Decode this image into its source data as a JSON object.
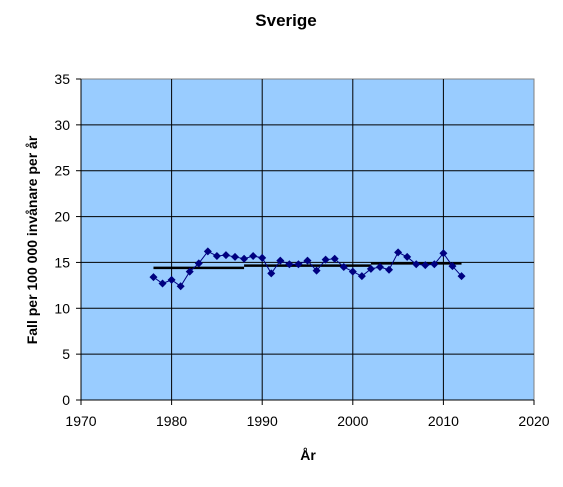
{
  "chart_data": {
    "type": "scatter",
    "title": "Sverige",
    "xlabel": "År",
    "ylabel": "Fall per 100 000 invånare per år",
    "xlim": [
      1970,
      2020
    ],
    "ylim": [
      0,
      35
    ],
    "x_ticks": [
      "1970",
      "1980",
      "1990",
      "2000",
      "2010",
      "2020"
    ],
    "y_ticks": [
      "0",
      "5",
      "10",
      "15",
      "20",
      "25",
      "30",
      "35"
    ],
    "grid": true,
    "legend": "none",
    "colors": {
      "plot_background": "#99ccff",
      "marker": "#000080",
      "line": "#000080",
      "trend": "#000000",
      "grid": "#000000"
    },
    "series": [
      {
        "marker": "diamond",
        "x": [
          1978,
          1979,
          1980,
          1981,
          1982,
          1983,
          1984,
          1985,
          1986,
          1987,
          1988,
          1989,
          1990,
          1991,
          1992,
          1993,
          1994,
          1995,
          1996,
          1997,
          1998,
          1999,
          2000,
          2001,
          2002,
          2003,
          2004,
          2005,
          2006,
          2007,
          2008,
          2009,
          2010,
          2011,
          2012
        ],
        "y": [
          13.4,
          12.7,
          13.1,
          12.4,
          14.0,
          14.9,
          16.2,
          15.7,
          15.8,
          15.6,
          15.4,
          15.7,
          15.5,
          13.8,
          15.2,
          14.8,
          14.8,
          15.2,
          14.1,
          15.3,
          15.4,
          14.5,
          14.0,
          13.5,
          14.3,
          14.5,
          14.2,
          16.1,
          15.6,
          14.8,
          14.7,
          14.8,
          16.0,
          14.6,
          13.5
        ]
      }
    ],
    "trend_segments": [
      {
        "x": [
          1978,
          1988
        ],
        "y": [
          14.4,
          14.4
        ]
      },
      {
        "x": [
          1988,
          2002
        ],
        "y": [
          14.65,
          14.65
        ]
      },
      {
        "x": [
          2002,
          2012
        ],
        "y": [
          14.9,
          14.9
        ]
      }
    ]
  }
}
